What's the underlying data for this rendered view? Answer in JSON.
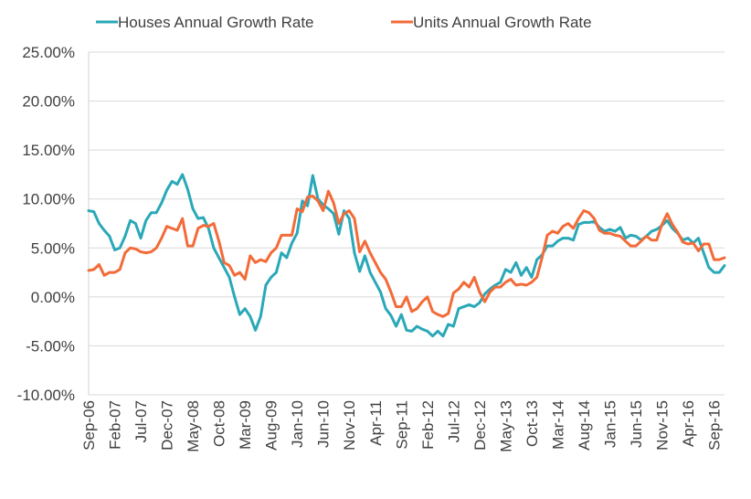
{
  "chart_data": {
    "type": "line",
    "title": "",
    "xlabel": "",
    "ylabel": "",
    "ylim": [
      -0.1,
      0.25
    ],
    "y_ticks": [
      -0.1,
      -0.05,
      0.0,
      0.05,
      0.1,
      0.15,
      0.2,
      0.25
    ],
    "y_tick_labels": [
      "-10.00%",
      "-5.00%",
      "0.00%",
      "5.00%",
      "10.00%",
      "15.00%",
      "20.00%",
      "25.00%"
    ],
    "grid": "horizontal",
    "legend_position": "top",
    "x_start": "Sep-06",
    "x_end": "Sep-16",
    "x_tick_labels": [
      "Sep-06",
      "Feb-07",
      "Jul-07",
      "Dec-07",
      "May-08",
      "Oct-08",
      "Mar-09",
      "Aug-09",
      "Jan-10",
      "Jun-10",
      "Nov-10",
      "Apr-11",
      "Sep-11",
      "Feb-12",
      "Jul-12",
      "Dec-12",
      "May-13",
      "Oct-13",
      "Mar-14",
      "Aug-14",
      "Jan-15",
      "Jun-15",
      "Nov-15",
      "Apr-16",
      "Sep-16"
    ],
    "series": [
      {
        "name": "Houses Annual Growth Rate",
        "color": "#2AA8B8",
        "values": [
          0.088,
          0.087,
          0.075,
          0.068,
          0.062,
          0.048,
          0.05,
          0.062,
          0.078,
          0.075,
          0.06,
          0.078,
          0.086,
          0.086,
          0.096,
          0.109,
          0.118,
          0.115,
          0.125,
          0.11,
          0.09,
          0.08,
          0.081,
          0.07,
          0.05,
          0.04,
          0.03,
          0.02,
          0.0,
          -0.018,
          -0.012,
          -0.02,
          -0.034,
          -0.02,
          0.012,
          0.02,
          0.025,
          0.045,
          0.04,
          0.055,
          0.065,
          0.098,
          0.093,
          0.124,
          0.1,
          0.094,
          0.09,
          0.085,
          0.064,
          0.088,
          0.08,
          0.045,
          0.026,
          0.042,
          0.025,
          0.015,
          0.005,
          -0.012,
          -0.019,
          -0.03,
          -0.018,
          -0.034,
          -0.035,
          -0.03,
          -0.033,
          -0.035,
          -0.04,
          -0.035,
          -0.04,
          -0.028,
          -0.03,
          -0.012,
          -0.01,
          -0.008,
          -0.01,
          -0.006,
          0.003,
          0.008,
          0.012,
          0.015,
          0.028,
          0.025,
          0.035,
          0.022,
          0.03,
          0.02,
          0.038,
          0.043,
          0.052,
          0.052,
          0.057,
          0.06,
          0.06,
          0.058,
          0.074,
          0.076,
          0.076,
          0.077,
          0.071,
          0.067,
          0.069,
          0.067,
          0.071,
          0.06,
          0.063,
          0.062,
          0.058,
          0.062,
          0.067,
          0.069,
          0.073,
          0.078,
          0.07,
          0.065,
          0.058,
          0.06,
          0.055,
          0.06,
          0.045,
          0.03,
          0.025,
          0.025,
          0.032
        ]
      },
      {
        "name": "Units Annual Growth Rate",
        "color": "#F26B38",
        "values": [
          0.027,
          0.028,
          0.033,
          0.022,
          0.025,
          0.025,
          0.028,
          0.045,
          0.05,
          0.049,
          0.046,
          0.045,
          0.046,
          0.05,
          0.06,
          0.072,
          0.07,
          0.068,
          0.08,
          0.052,
          0.052,
          0.07,
          0.073,
          0.072,
          0.075,
          0.057,
          0.035,
          0.032,
          0.022,
          0.025,
          0.018,
          0.042,
          0.035,
          0.038,
          0.036,
          0.045,
          0.05,
          0.063,
          0.063,
          0.063,
          0.09,
          0.087,
          0.102,
          0.103,
          0.098,
          0.088,
          0.108,
          0.096,
          0.075,
          0.085,
          0.088,
          0.08,
          0.046,
          0.057,
          0.045,
          0.035,
          0.025,
          0.018,
          0.005,
          -0.01,
          -0.01,
          0.0,
          -0.015,
          -0.012,
          -0.005,
          0.0,
          -0.015,
          -0.018,
          -0.02,
          -0.017,
          0.004,
          0.008,
          0.015,
          0.01,
          0.02,
          0.005,
          -0.005,
          0.005,
          0.01,
          0.01,
          0.015,
          0.018,
          0.012,
          0.013,
          0.012,
          0.015,
          0.02,
          0.04,
          0.063,
          0.067,
          0.065,
          0.072,
          0.075,
          0.07,
          0.08,
          0.088,
          0.086,
          0.08,
          0.068,
          0.065,
          0.065,
          0.063,
          0.062,
          0.057,
          0.052,
          0.052,
          0.057,
          0.062,
          0.058,
          0.058,
          0.074,
          0.085,
          0.074,
          0.066,
          0.056,
          0.054,
          0.055,
          0.047,
          0.054,
          0.054,
          0.038,
          0.038,
          0.04
        ]
      }
    ]
  }
}
